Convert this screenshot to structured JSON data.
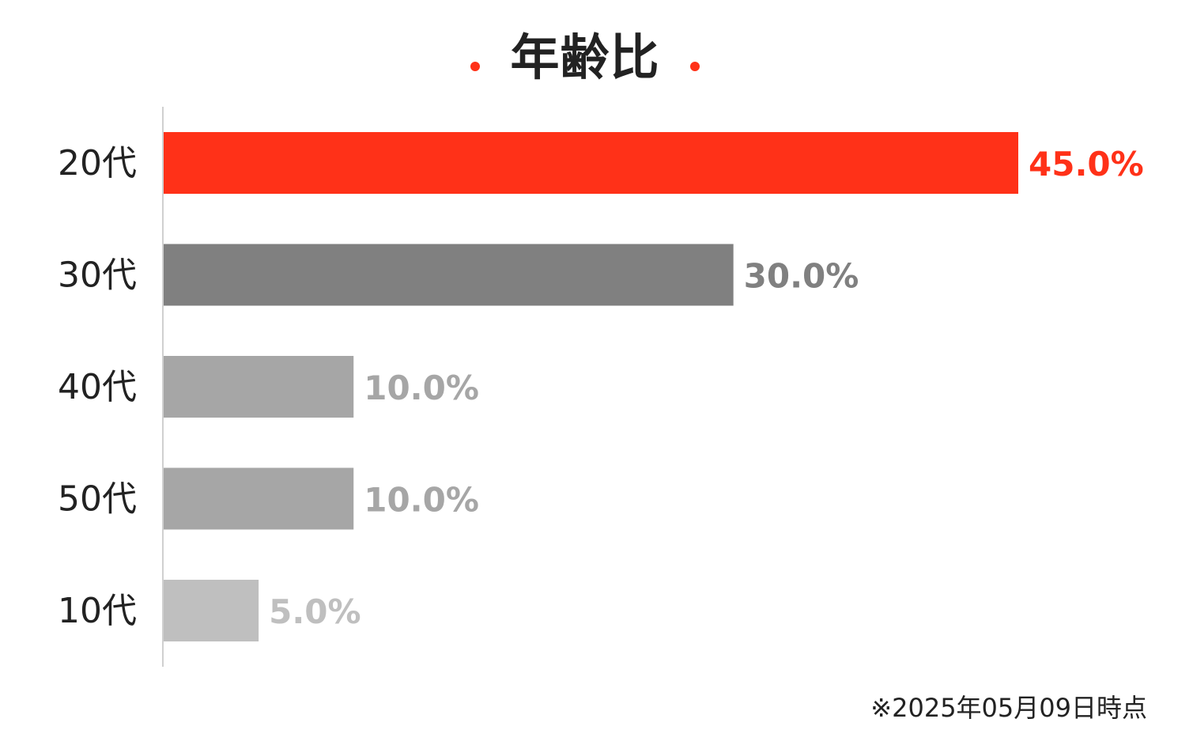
{
  "chart_data": {
    "type": "bar",
    "orientation": "horizontal",
    "title": "年齢比",
    "categories": [
      "20代",
      "30代",
      "40代",
      "50代",
      "10代"
    ],
    "values": [
      45.0,
      30.0,
      10.0,
      10.0,
      5.0
    ],
    "value_labels": [
      "45.0%",
      "30.0%",
      "10.0%",
      "10.0%",
      "5.0%"
    ],
    "bar_colors": [
      "#ff3118",
      "#808080",
      "#a6a6a6",
      "#a6a6a6",
      "#bfbfbf"
    ],
    "label_colors": [
      "#ff3118",
      "#808080",
      "#a6a6a6",
      "#a6a6a6",
      "#bfbfbf"
    ],
    "xlim": [
      0,
      45
    ],
    "grid": false,
    "xlabel": "",
    "ylabel": ""
  },
  "accent_color": "#ff3118",
  "footnote": "※2025年05月09日時点"
}
